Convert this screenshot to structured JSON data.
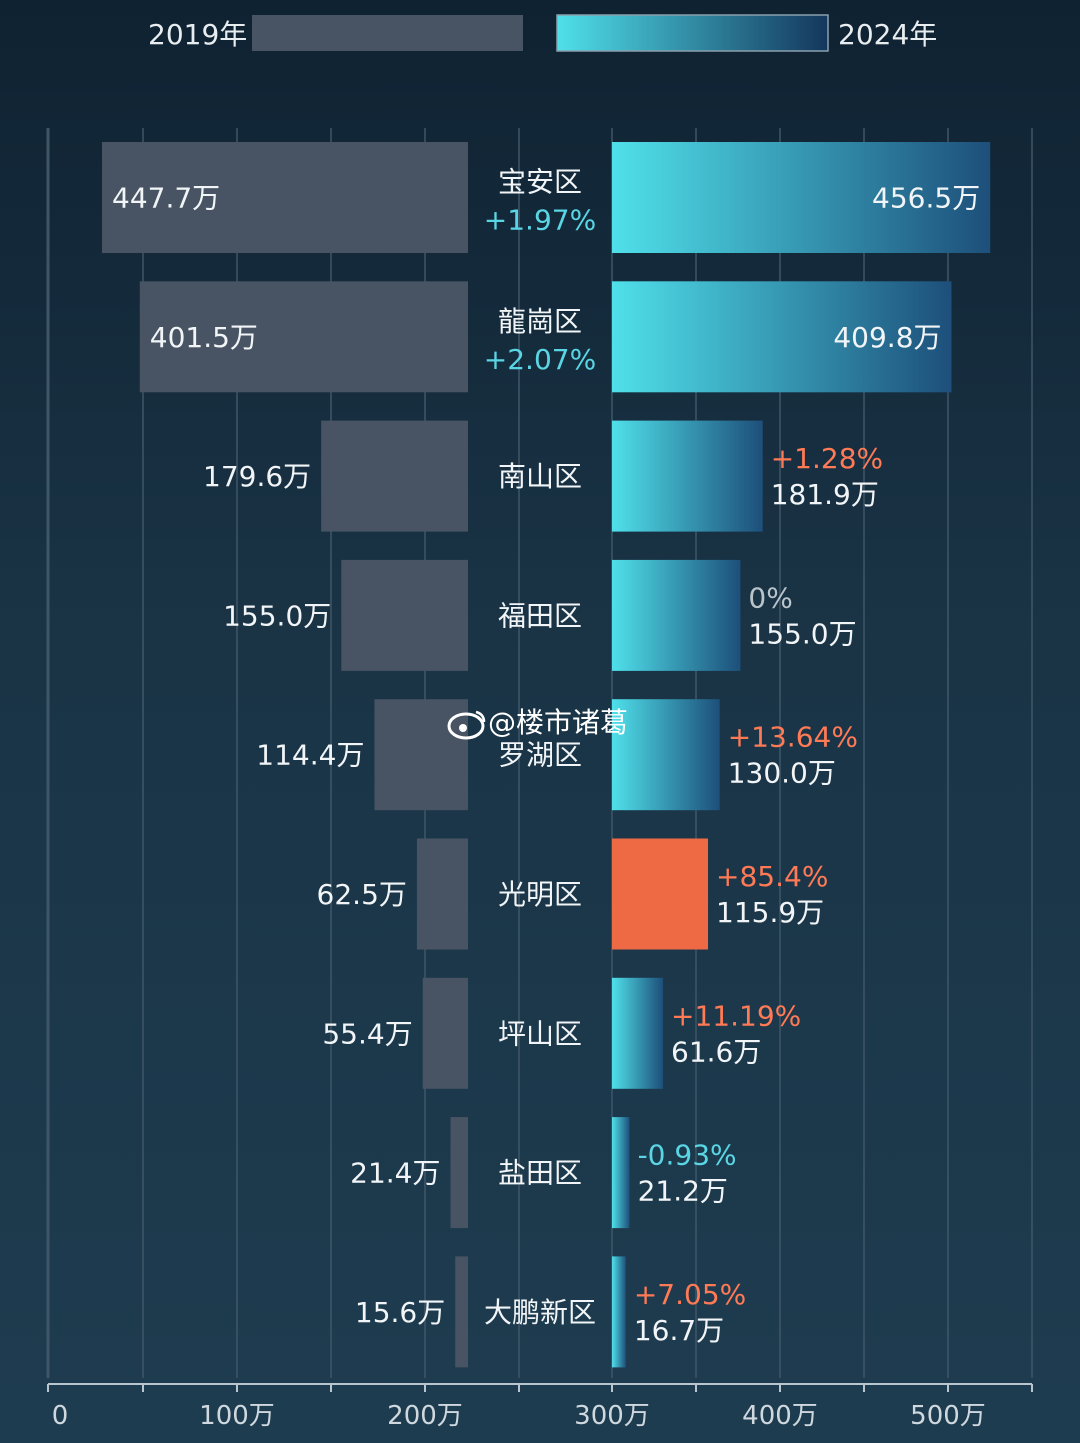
{
  "legend": {
    "left_label": "2019年",
    "right_label": "2024年"
  },
  "watermark": {
    "text": "@楼市诸葛",
    "icon": "weibo-icon"
  },
  "colors": {
    "bar_2019": "#485463",
    "bar_2024_start": "#4fe0ea",
    "bar_2024_end": "#1d4f7a",
    "highlight": "#ee6a45",
    "pct_positive_red": "#ff7a55",
    "pct_teal": "#5ad5e4",
    "pct_zero": "#b9c3ca"
  },
  "chart_data": {
    "type": "bar",
    "layout": "butterfly",
    "categories": [
      "宝安区",
      "龍崗区",
      "南山区",
      "福田区",
      "罗湖区",
      "光明区",
      "坪山区",
      "盐田区",
      "大鹏新区"
    ],
    "series": [
      {
        "name": "2019年",
        "values": [
          447.7,
          401.5,
          179.6,
          155.0,
          114.4,
          62.5,
          55.4,
          21.4,
          15.6
        ],
        "labels": [
          "447.7万",
          "401.5万",
          "179.6万",
          "155.0万",
          "114.4万",
          "62.5万",
          "55.4万",
          "21.4万",
          "15.6万"
        ]
      },
      {
        "name": "2024年",
        "values": [
          456.5,
          409.8,
          181.9,
          155.0,
          130.0,
          115.9,
          61.6,
          21.2,
          16.7
        ],
        "labels": [
          "456.5万",
          "409.8万",
          "181.9万",
          "155.0万",
          "130.0万",
          "115.9万",
          "61.6万",
          "21.2万",
          "16.7万"
        ]
      }
    ],
    "changes": [
      "+1.97%",
      "+2.07%",
      "+1.28%",
      "0%",
      "+13.64%",
      "+85.4%",
      "+11.19%",
      "-0.93%",
      "+7.05%"
    ],
    "change_position": [
      "center",
      "center",
      "right",
      "right",
      "right",
      "right",
      "right",
      "right",
      "right"
    ],
    "change_color": [
      "teal",
      "teal",
      "red",
      "grey",
      "red",
      "red",
      "red",
      "teal",
      "red"
    ],
    "highlight_index": 5,
    "x_ticks": [
      "0",
      "100万",
      "200万",
      "300万",
      "400万",
      "500万"
    ],
    "grid": true
  }
}
